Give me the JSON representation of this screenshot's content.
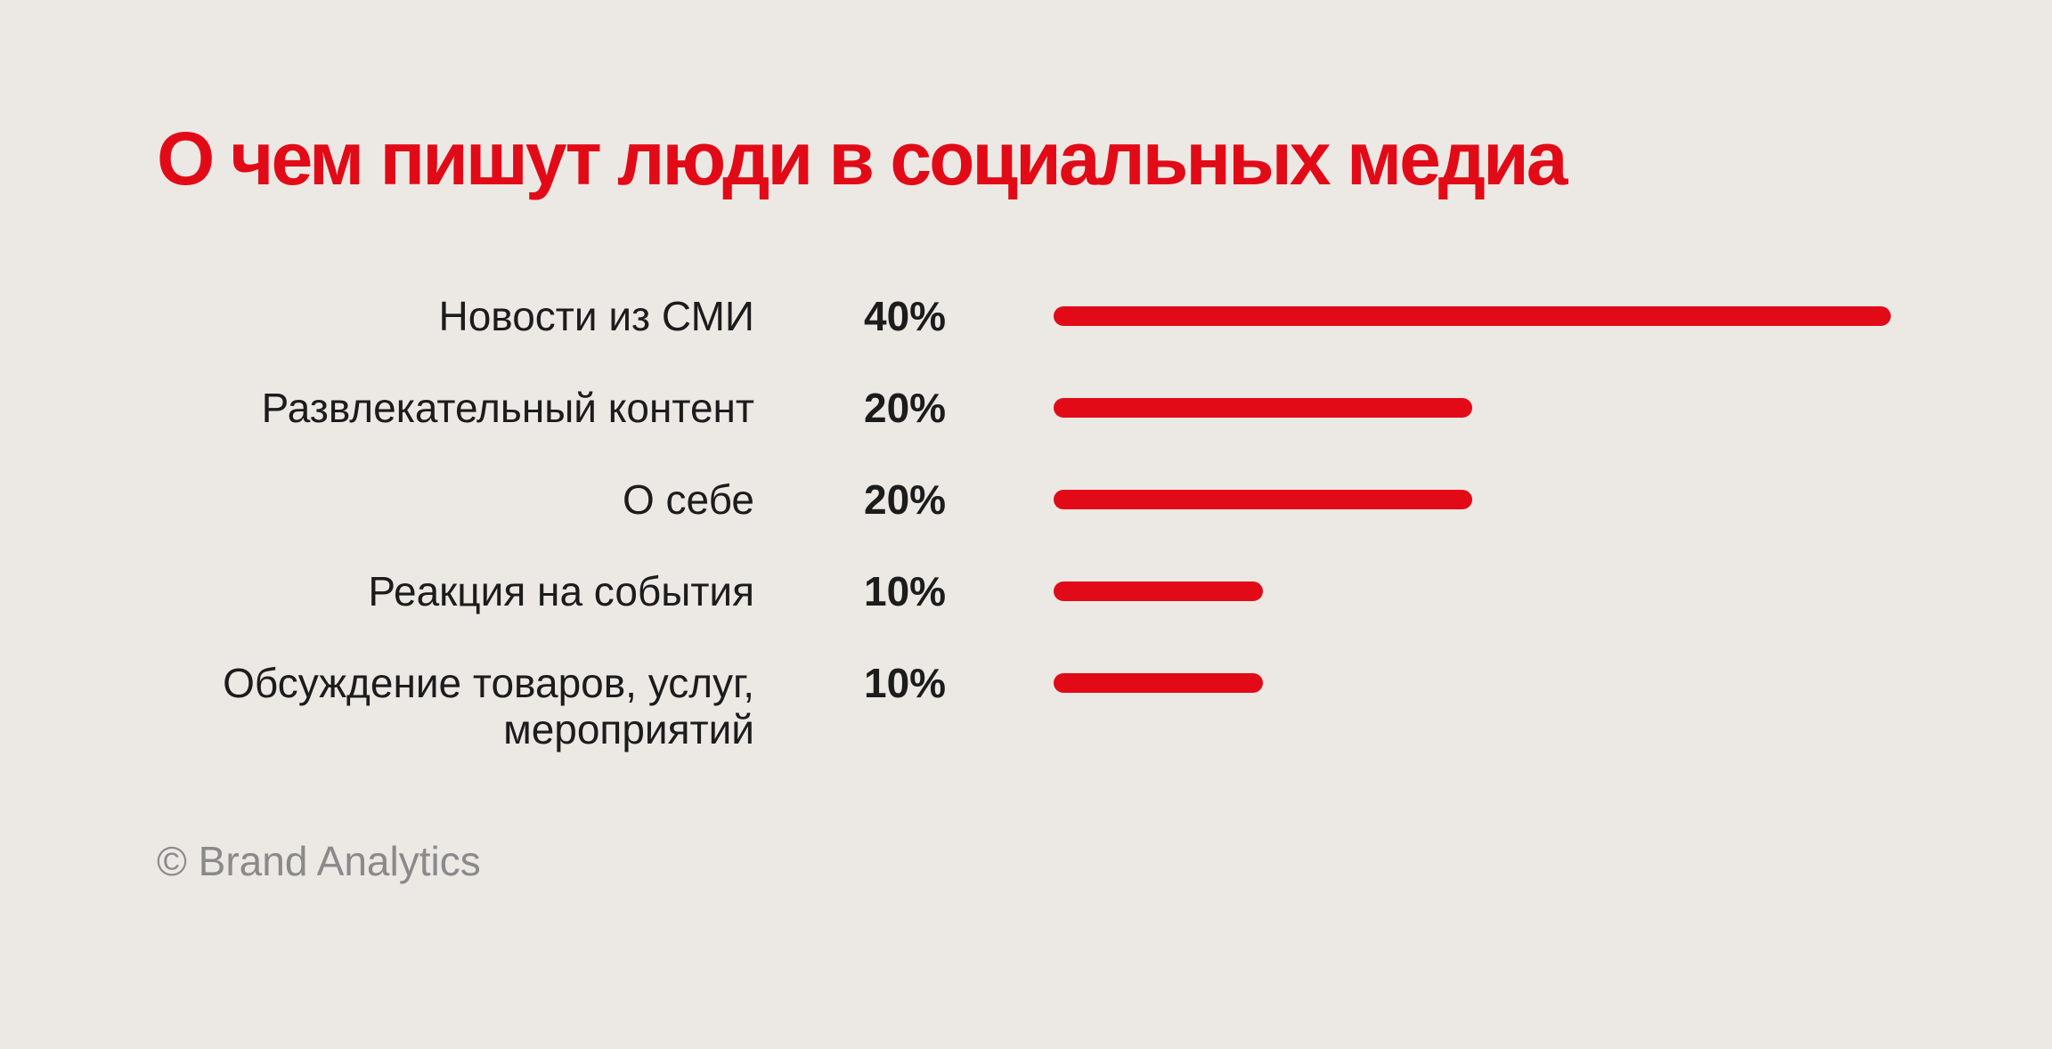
{
  "colors": {
    "accent": "#e20a17",
    "text": "#1c1c1c",
    "muted": "#8a8a8a",
    "background": "#ece8e4"
  },
  "source": "© Brand Analytics",
  "chart_data": {
    "type": "bar",
    "orientation": "horizontal",
    "title": "О чем пишут люди в социальных медиа",
    "xlabel": "",
    "ylabel": "",
    "unit": "%",
    "xlim": [
      0,
      40
    ],
    "grid": false,
    "categories": [
      [
        "Новости из СМИ"
      ],
      [
        "Развлекательный контент"
      ],
      [
        "О себе"
      ],
      [
        "Реакция на события"
      ],
      [
        "Обсуждение товаров, услуг,",
        "мероприятий"
      ]
    ],
    "values": [
      40,
      20,
      20,
      10,
      10
    ],
    "value_labels": [
      "40%",
      "20%",
      "20%",
      "10%",
      "10%"
    ]
  }
}
